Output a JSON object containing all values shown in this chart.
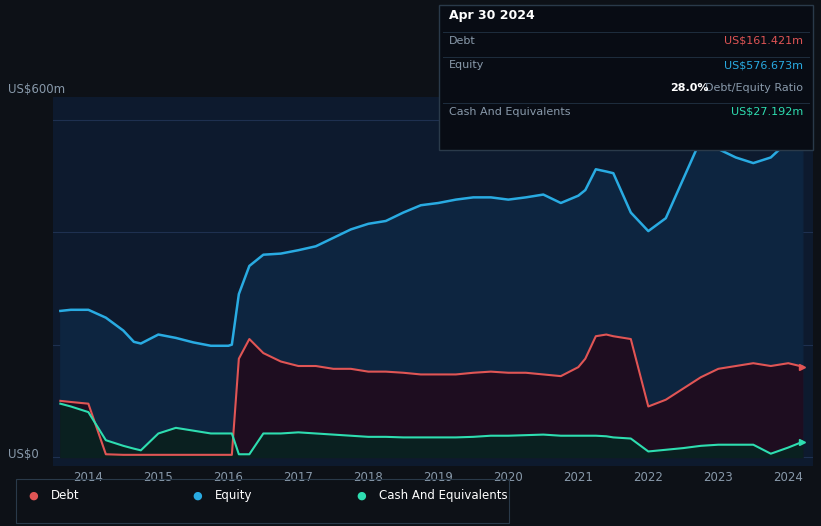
{
  "bg_color": "#0d1117",
  "plot_bg_color": "#0d1a2e",
  "grid_color": "#1e3050",
  "title_label": "US$600m",
  "zero_label": "US$0",
  "debt_color": "#e05555",
  "equity_color": "#29abe2",
  "cash_color": "#2eddb0",
  "x_ticks": [
    2014,
    2015,
    2016,
    2017,
    2018,
    2019,
    2020,
    2021,
    2022,
    2023,
    2024
  ],
  "tooltip": {
    "date": "Apr 30 2024",
    "debt_label": "Debt",
    "debt_value": "US$161.421m",
    "equity_label": "Equity",
    "equity_value": "US$576.673m",
    "ratio_value": "28.0%",
    "ratio_label": "Debt/Equity Ratio",
    "cash_label": "Cash And Equivalents",
    "cash_value": "US$27.192m"
  },
  "legend": [
    {
      "label": "Debt",
      "color": "#e05555"
    },
    {
      "label": "Equity",
      "color": "#29abe2"
    },
    {
      "label": "Cash And Equivalents",
      "color": "#2eddb0"
    }
  ],
  "years": [
    2013.6,
    2013.75,
    2014.0,
    2014.25,
    2014.5,
    2014.65,
    2014.75,
    2015.0,
    2015.25,
    2015.5,
    2015.75,
    2016.0,
    2016.05,
    2016.15,
    2016.3,
    2016.5,
    2016.75,
    2017.0,
    2017.25,
    2017.5,
    2017.75,
    2018.0,
    2018.25,
    2018.5,
    2018.75,
    2019.0,
    2019.25,
    2019.5,
    2019.75,
    2020.0,
    2020.25,
    2020.5,
    2020.75,
    2021.0,
    2021.1,
    2021.25,
    2021.4,
    2021.5,
    2021.75,
    2022.0,
    2022.25,
    2022.5,
    2022.75,
    2023.0,
    2023.25,
    2023.5,
    2023.75,
    2024.0,
    2024.2
  ],
  "equity": [
    260,
    262,
    262,
    248,
    225,
    205,
    202,
    218,
    212,
    204,
    198,
    198,
    200,
    290,
    340,
    360,
    362,
    368,
    375,
    390,
    405,
    415,
    420,
    435,
    448,
    452,
    458,
    462,
    462,
    458,
    462,
    467,
    452,
    465,
    475,
    512,
    508,
    505,
    435,
    402,
    425,
    495,
    565,
    548,
    533,
    523,
    533,
    562,
    578
  ],
  "debt": [
    100,
    98,
    95,
    5,
    4,
    4,
    4,
    4,
    4,
    4,
    4,
    4,
    4,
    175,
    210,
    185,
    170,
    162,
    162,
    157,
    157,
    152,
    152,
    150,
    147,
    147,
    147,
    150,
    152,
    150,
    150,
    147,
    144,
    160,
    175,
    215,
    218,
    215,
    210,
    90,
    102,
    122,
    142,
    157,
    162,
    167,
    162,
    167,
    161
  ],
  "cash": [
    95,
    90,
    80,
    30,
    20,
    15,
    12,
    42,
    52,
    47,
    42,
    42,
    42,
    5,
    5,
    42,
    42,
    44,
    42,
    40,
    38,
    36,
    36,
    35,
    35,
    35,
    35,
    36,
    38,
    38,
    39,
    40,
    38,
    38,
    38,
    38,
    37,
    35,
    33,
    10,
    13,
    16,
    20,
    22,
    22,
    22,
    6,
    17,
    27
  ]
}
